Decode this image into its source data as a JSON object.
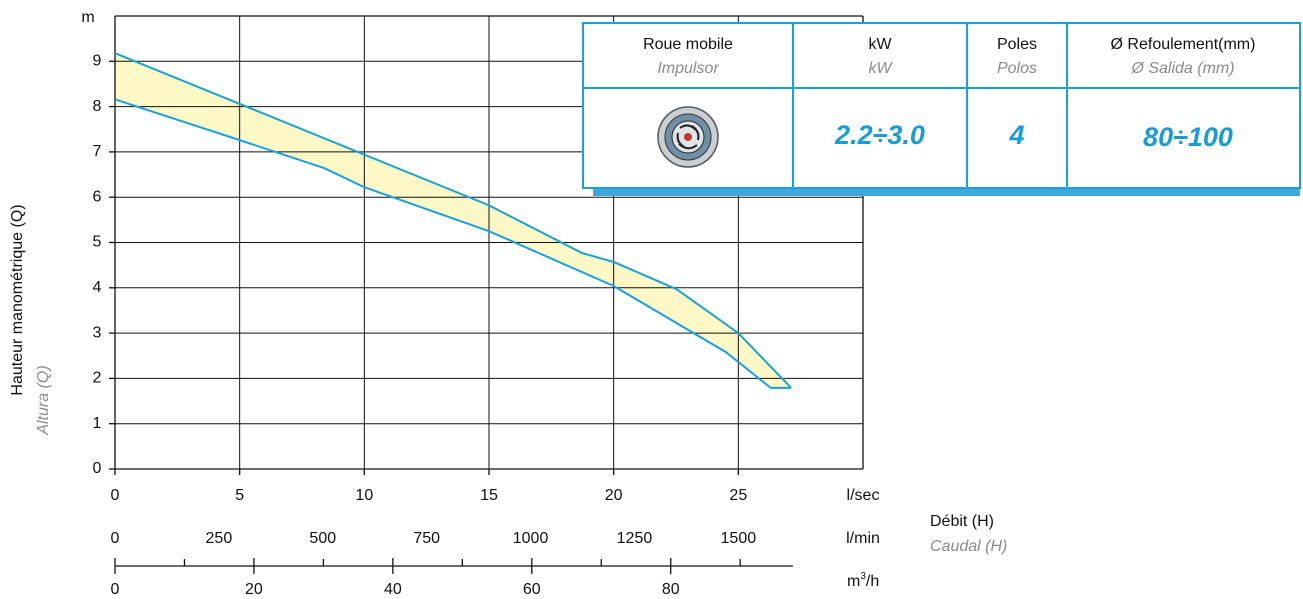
{
  "chart_data": {
    "type": "band",
    "series": [
      {
        "color": "#1aa0dc",
        "x": [
          0,
          15,
          18.72,
          20,
          22.52,
          25,
          27.12
        ],
        "values": [
          9.18,
          5.82,
          4.77,
          4.57,
          3.97,
          3.0,
          1.79
        ]
      },
      {
        "color": "#1aa0dc",
        "x": [
          0,
          5,
          8.4,
          10,
          15,
          20,
          24.5,
          26.3,
          27.12
        ],
        "values": [
          8.16,
          7.26,
          6.64,
          6.22,
          5.25,
          4.04,
          2.58,
          1.79,
          1.79
        ]
      }
    ],
    "fill_color": "#fdf8c6",
    "xlim": [
      0,
      30
    ],
    "xticks": [
      0,
      5,
      10,
      15,
      20,
      25
    ],
    "ylim": [
      0,
      10
    ],
    "yticks": [
      0,
      1,
      2,
      3,
      4,
      5,
      6,
      7,
      8,
      9
    ],
    "grid": true,
    "y_unit": "m",
    "x_unit": "l/sec",
    "ylabel": "Hauteur manométrique (Q)",
    "ylabel2": "Altura (Q)",
    "xlabel": "Débit (H)",
    "xlabel2": "Caudal (H)",
    "lmin_axis": {
      "unit": "l/min",
      "xlim": [
        0,
        1800
      ],
      "xticks": [
        0,
        250,
        500,
        750,
        1000,
        1250,
        1500
      ]
    },
    "m3h_axis": {
      "unit": "m",
      "unit_sup": "3",
      "unit_rest": "/h",
      "xlim": [
        0,
        97.6
      ],
      "xticks": [
        0,
        20,
        40,
        60,
        80
      ],
      "minor_ticks": [
        10,
        30,
        50,
        70,
        90
      ]
    }
  },
  "table": {
    "headers": [
      [
        "Roue mobile",
        "Impulsor"
      ],
      [
        "kW",
        "kW"
      ],
      [
        "Poles",
        "Polos"
      ],
      [
        "Ø Refoulement(mm)",
        "Ø Salida (mm)"
      ]
    ],
    "row": [
      "2.2÷3.0",
      "4",
      "80÷100"
    ]
  }
}
